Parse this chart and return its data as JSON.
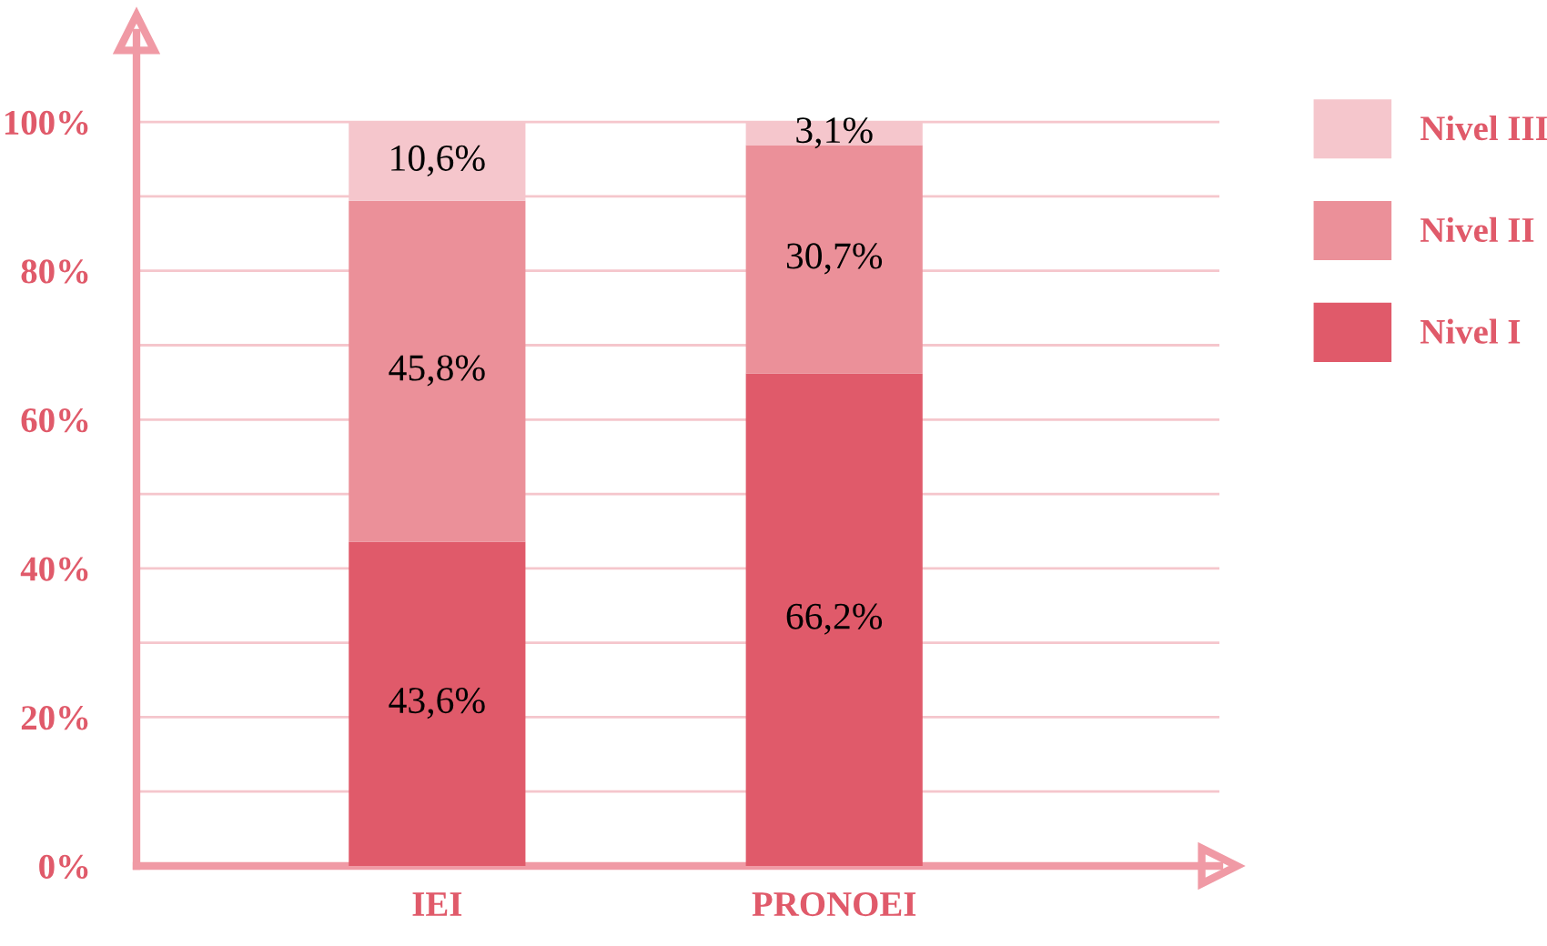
{
  "chart_data": {
    "type": "bar",
    "stacked": true,
    "categories": [
      "IEI",
      "PRONOEI"
    ],
    "series": [
      {
        "name": "Nivel I",
        "color": "#e05a6a",
        "values": [
          43.6,
          66.2
        ],
        "value_labels": [
          "43,6%",
          "66,2%"
        ]
      },
      {
        "name": "Nivel II",
        "color": "#eb9099",
        "values": [
          45.8,
          30.7
        ],
        "value_labels": [
          "45,8%",
          "30,7%"
        ]
      },
      {
        "name": "Nivel III",
        "color": "#f5c6cc",
        "values": [
          10.6,
          3.1
        ],
        "value_labels": [
          "10,6%",
          "3,1%"
        ]
      }
    ],
    "ylim": [
      0,
      112
    ],
    "yticks": [
      {
        "value": 0,
        "label": "0%"
      },
      {
        "value": 10,
        "label": null
      },
      {
        "value": 20,
        "label": "20%"
      },
      {
        "value": 30,
        "label": null
      },
      {
        "value": 40,
        "label": "40%"
      },
      {
        "value": 50,
        "label": null
      },
      {
        "value": 60,
        "label": "60%"
      },
      {
        "value": 70,
        "label": null
      },
      {
        "value": 80,
        "label": "80%"
      },
      {
        "value": 90,
        "label": null
      },
      {
        "value": 100,
        "label": "100%"
      }
    ],
    "grid": "y",
    "legend": "right"
  }
}
